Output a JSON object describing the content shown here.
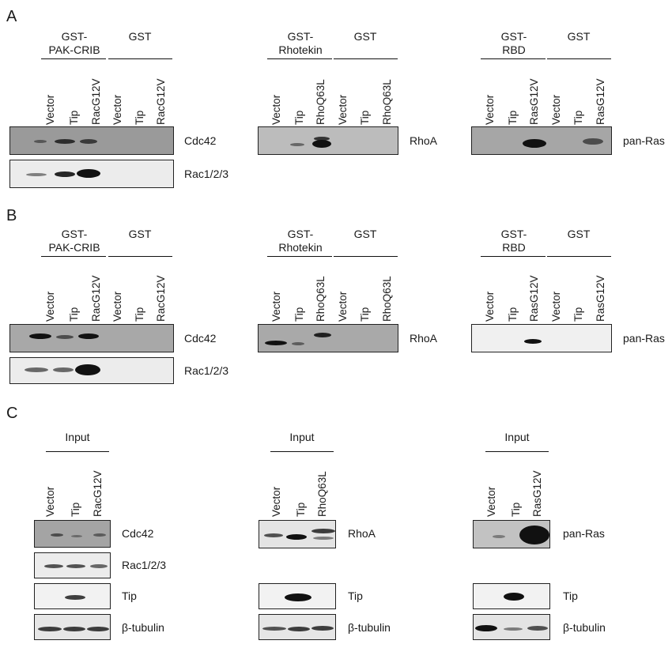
{
  "panels": {
    "a": "A",
    "b": "B",
    "c": "C"
  },
  "headers": {
    "pak_crib": [
      "GST-",
      "PAK-CRIB"
    ],
    "rhotekin": [
      "GST-",
      "Rhotekin"
    ],
    "rbd": [
      "GST-",
      "RBD"
    ],
    "gst": "GST",
    "input": "Input"
  },
  "lanes": {
    "rac": [
      "Vector",
      "Tip",
      "RacG12V",
      "Vector",
      "Tip",
      "RacG12V"
    ],
    "rho": [
      "Vector",
      "Tip",
      "RhoQ63L",
      "Vector",
      "Tip",
      "RhoQ63L"
    ],
    "ras": [
      "Vector",
      "Tip",
      "RasG12V",
      "Vector",
      "Tip",
      "RasG12V"
    ],
    "rac_input": [
      "Vector",
      "Tip",
      "RacG12V"
    ],
    "rho_input": [
      "Vector",
      "Tip",
      "RhoQ63L"
    ],
    "ras_input": [
      "Vector",
      "Tip",
      "RasG12V"
    ]
  },
  "blot_labels": {
    "cdc42": "Cdc42",
    "rac": "Rac1/2/3",
    "rhoa": "RhoA",
    "panras": "pan-Ras",
    "tip": "Tip",
    "tubulin": "β-tubulin"
  }
}
